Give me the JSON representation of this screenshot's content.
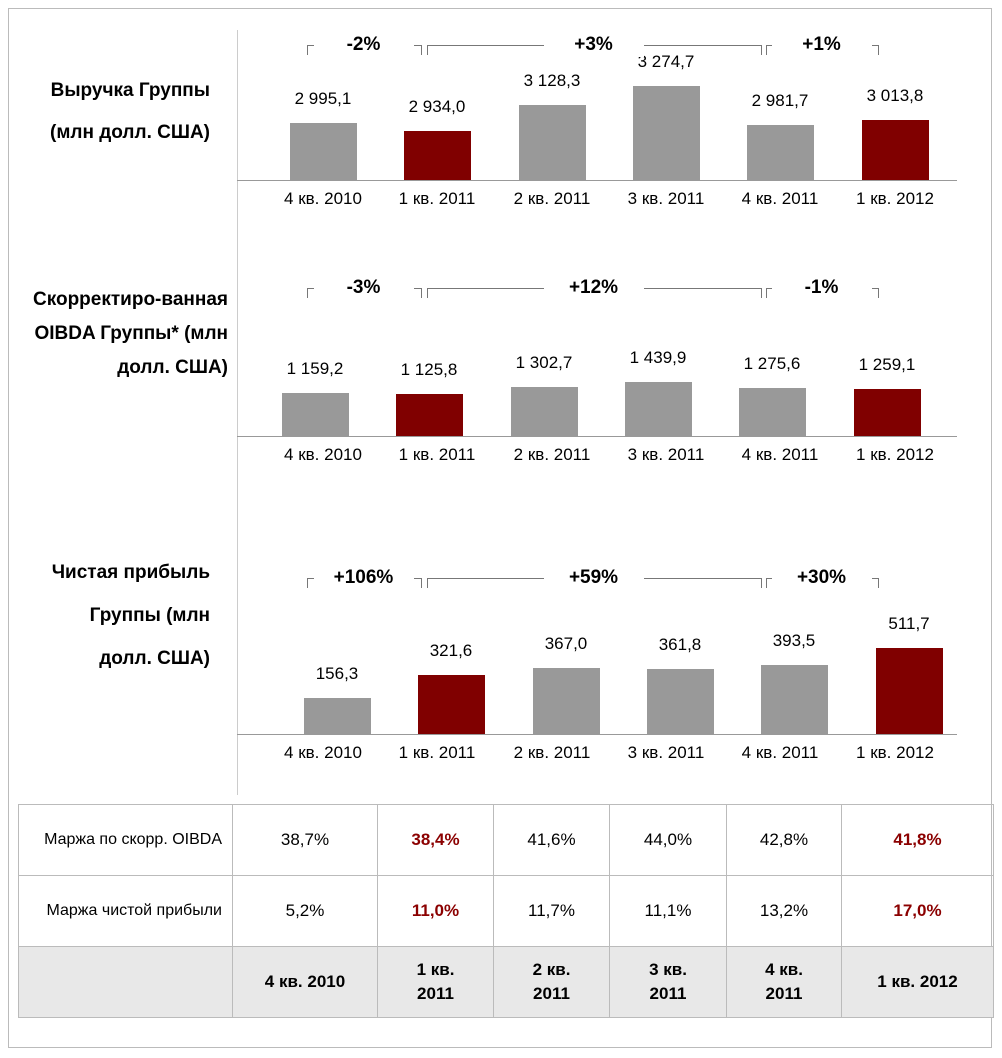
{
  "chart_data": [
    {
      "type": "bar",
      "title": "Выручка Группы (млн долл. США)",
      "categories": [
        "4 кв. 2010",
        "1 кв. 2011",
        "2 кв. 2011",
        "3 кв. 2011",
        "4 кв. 2011",
        "1 кв. 2012"
      ],
      "values": [
        2995.1,
        2934.0,
        3128.3,
        3274.7,
        2981.7,
        3013.8
      ],
      "value_labels": [
        "2 995,1",
        "2 934,0",
        "3 128,3",
        "3 274,7",
        "2 981,7",
        "3 013,8"
      ],
      "colors": [
        "#999999",
        "#800000",
        "#999999",
        "#999999",
        "#999999",
        "#800000"
      ],
      "annotations": [
        "-2%",
        "+3%",
        "+1%"
      ]
    },
    {
      "type": "bar",
      "title": "Скорректиро-ванная OIBDA Группы* (млн долл. США)",
      "categories": [
        "4 кв. 2010",
        "1 кв. 2011",
        "2 кв. 2011",
        "3 кв. 2011",
        "4 кв. 2011",
        "1 кв. 2012"
      ],
      "values": [
        1159.2,
        1125.8,
        1302.7,
        1439.9,
        1275.6,
        1259.1
      ],
      "value_labels": [
        "1 159,2",
        "1 125,8",
        "1 302,7",
        "1 439,9",
        "1 275,6",
        "1 259,1"
      ],
      "colors": [
        "#999999",
        "#800000",
        "#999999",
        "#999999",
        "#999999",
        "#800000"
      ],
      "annotations": [
        "-3%",
        "+12%",
        "-1%"
      ]
    },
    {
      "type": "bar",
      "title": "Чистая прибыль Группы (млн долл. США)",
      "categories": [
        "4 кв. 2010",
        "1 кв. 2011",
        "2 кв. 2011",
        "3 кв. 2011",
        "4 кв. 2011",
        "1 кв. 2012"
      ],
      "values": [
        156.3,
        321.6,
        367.0,
        361.8,
        393.5,
        511.7
      ],
      "value_labels": [
        "156,3",
        "321,6",
        "367,0",
        "361,8",
        "393,5",
        "511,7"
      ],
      "colors": [
        "#999999",
        "#800000",
        "#999999",
        "#999999",
        "#999999",
        "#800000"
      ],
      "annotations": [
        "+106%",
        "+59%",
        "+30%"
      ]
    }
  ],
  "table": {
    "rows": [
      {
        "label": "Маржа по скорр. OIBDA",
        "values": [
          "38,7%",
          "38,4%",
          "41,6%",
          "44,0%",
          "42,8%",
          "41,8%"
        ]
      },
      {
        "label": "Маржа чистой прибыли",
        "values": [
          "5,2%",
          "11,0%",
          "11,7%",
          "11,1%",
          "13,2%",
          "17,0%"
        ]
      }
    ],
    "header": [
      "4 кв. 2010",
      "1 кв. 2011",
      "2 кв. 2011",
      "3 кв. 2011",
      "4 кв. 2011",
      "1 кв. 2012"
    ],
    "highlight_columns": [
      1,
      5
    ],
    "highlight_color": "#8b0000"
  }
}
